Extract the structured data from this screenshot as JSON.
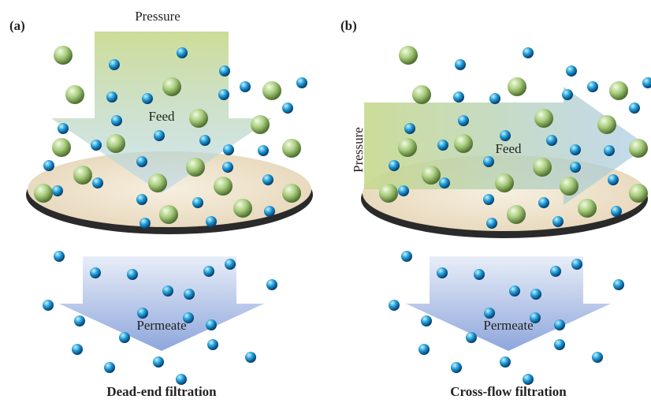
{
  "panels": [
    {
      "label": "(a)",
      "pressure": "Pressure",
      "feed": "Feed",
      "permeate": "Permeate",
      "caption": "Dead-end filtration"
    },
    {
      "label": "(b)",
      "pressure": "Pressure",
      "feed": "Feed",
      "permeate": "Permeate",
      "caption": "Cross-flow filtration"
    }
  ]
}
